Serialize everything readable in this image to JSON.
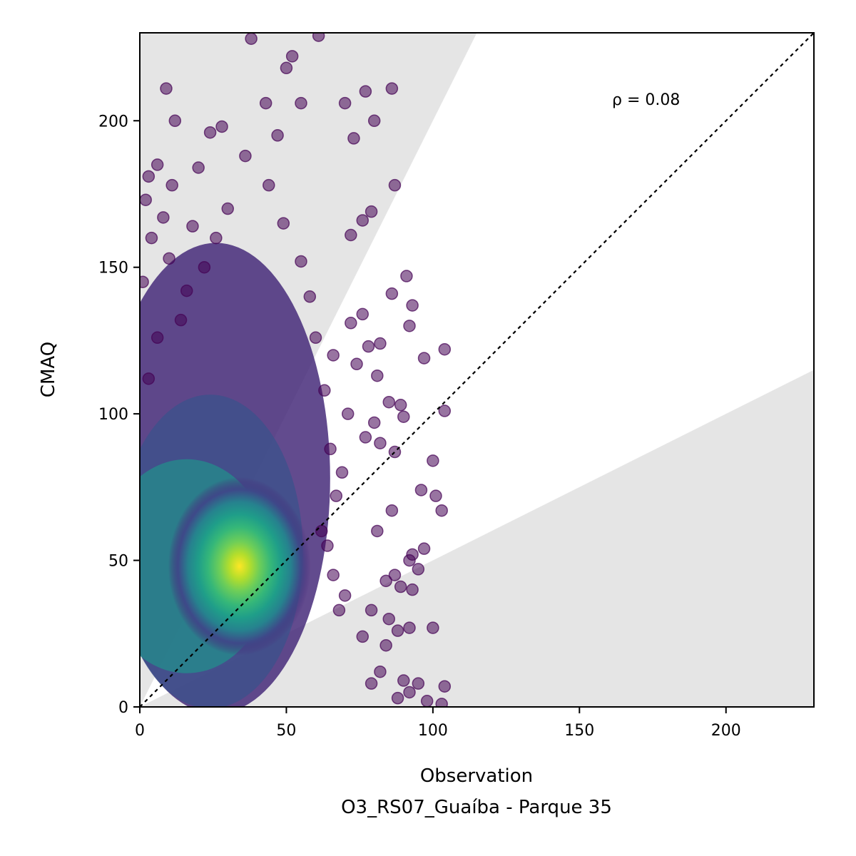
{
  "chart_data": {
    "type": "scatter",
    "title": "",
    "xlabel": "Observation",
    "xlabel_sub": "O3_RS07_Guaíba - Parque 35",
    "ylabel": "CMAQ",
    "xlim": [
      0,
      230
    ],
    "ylim": [
      0,
      230
    ],
    "xticks": [
      0,
      50,
      100,
      150,
      200
    ],
    "yticks": [
      0,
      50,
      100,
      150,
      200
    ],
    "grid": false,
    "annotation": "ρ = 0.08",
    "identity_line": true,
    "shaded_regions": "outside factor-of-2 band (y > 2x and y < x/2)",
    "colormap": "viridis (point density)",
    "density_center": {
      "x": 34,
      "y": 48
    },
    "points": [
      {
        "x": 38,
        "y": 228
      },
      {
        "x": 61,
        "y": 229
      },
      {
        "x": 52,
        "y": 222
      },
      {
        "x": 50,
        "y": 218
      },
      {
        "x": 9,
        "y": 211
      },
      {
        "x": 86,
        "y": 211
      },
      {
        "x": 77,
        "y": 210
      },
      {
        "x": 43,
        "y": 206
      },
      {
        "x": 70,
        "y": 206
      },
      {
        "x": 55,
        "y": 206
      },
      {
        "x": 12,
        "y": 200
      },
      {
        "x": 80,
        "y": 200
      },
      {
        "x": 28,
        "y": 198
      },
      {
        "x": 24,
        "y": 196
      },
      {
        "x": 47,
        "y": 195
      },
      {
        "x": 73,
        "y": 194
      },
      {
        "x": 3,
        "y": 181
      },
      {
        "x": 6,
        "y": 185
      },
      {
        "x": 11,
        "y": 178
      },
      {
        "x": 20,
        "y": 184
      },
      {
        "x": 87,
        "y": 178
      },
      {
        "x": 2,
        "y": 173
      },
      {
        "x": 8,
        "y": 167
      },
      {
        "x": 79,
        "y": 169
      },
      {
        "x": 76,
        "y": 166
      },
      {
        "x": 4,
        "y": 160
      },
      {
        "x": 72,
        "y": 161
      },
      {
        "x": 18,
        "y": 164
      },
      {
        "x": 10,
        "y": 153
      },
      {
        "x": 91,
        "y": 147
      },
      {
        "x": 86,
        "y": 141
      },
      {
        "x": 1,
        "y": 145
      },
      {
        "x": 93,
        "y": 137
      },
      {
        "x": 92,
        "y": 130
      },
      {
        "x": 76,
        "y": 134
      },
      {
        "x": 72,
        "y": 131
      },
      {
        "x": 104,
        "y": 122
      },
      {
        "x": 82,
        "y": 124
      },
      {
        "x": 78,
        "y": 123
      },
      {
        "x": 97,
        "y": 119
      },
      {
        "x": 74,
        "y": 117
      },
      {
        "x": 81,
        "y": 113
      },
      {
        "x": 85,
        "y": 104
      },
      {
        "x": 89,
        "y": 103
      },
      {
        "x": 104,
        "y": 101
      },
      {
        "x": 90,
        "y": 99
      },
      {
        "x": 80,
        "y": 97
      },
      {
        "x": 77,
        "y": 92
      },
      {
        "x": 82,
        "y": 90
      },
      {
        "x": 87,
        "y": 87
      },
      {
        "x": 100,
        "y": 84
      },
      {
        "x": 96,
        "y": 74
      },
      {
        "x": 101,
        "y": 72
      },
      {
        "x": 103,
        "y": 67
      },
      {
        "x": 86,
        "y": 67
      },
      {
        "x": 81,
        "y": 60
      },
      {
        "x": 93,
        "y": 52
      },
      {
        "x": 97,
        "y": 54
      },
      {
        "x": 92,
        "y": 50
      },
      {
        "x": 95,
        "y": 47
      },
      {
        "x": 87,
        "y": 45
      },
      {
        "x": 84,
        "y": 43
      },
      {
        "x": 93,
        "y": 40
      },
      {
        "x": 89,
        "y": 41
      },
      {
        "x": 79,
        "y": 33
      },
      {
        "x": 85,
        "y": 30
      },
      {
        "x": 92,
        "y": 27
      },
      {
        "x": 100,
        "y": 27
      },
      {
        "x": 88,
        "y": 26
      },
      {
        "x": 84,
        "y": 21
      },
      {
        "x": 76,
        "y": 24
      },
      {
        "x": 82,
        "y": 12
      },
      {
        "x": 79,
        "y": 8
      },
      {
        "x": 90,
        "y": 9
      },
      {
        "x": 95,
        "y": 8
      },
      {
        "x": 104,
        "y": 7
      },
      {
        "x": 92,
        "y": 5
      },
      {
        "x": 88,
        "y": 3
      },
      {
        "x": 98,
        "y": 2
      },
      {
        "x": 103,
        "y": 1
      },
      {
        "x": 70,
        "y": 38
      },
      {
        "x": 68,
        "y": 33
      },
      {
        "x": 66,
        "y": 45
      },
      {
        "x": 64,
        "y": 55
      },
      {
        "x": 62,
        "y": 60
      },
      {
        "x": 67,
        "y": 72
      },
      {
        "x": 69,
        "y": 80
      },
      {
        "x": 65,
        "y": 88
      },
      {
        "x": 71,
        "y": 100
      },
      {
        "x": 63,
        "y": 108
      },
      {
        "x": 66,
        "y": 120
      },
      {
        "x": 60,
        "y": 126
      },
      {
        "x": 58,
        "y": 140
      },
      {
        "x": 55,
        "y": 152
      },
      {
        "x": 49,
        "y": 165
      },
      {
        "x": 44,
        "y": 178
      },
      {
        "x": 36,
        "y": 188
      },
      {
        "x": 30,
        "y": 170
      },
      {
        "x": 26,
        "y": 160
      },
      {
        "x": 22,
        "y": 150
      },
      {
        "x": 16,
        "y": 142
      },
      {
        "x": 14,
        "y": 132
      },
      {
        "x": 6,
        "y": 126
      },
      {
        "x": 3,
        "y": 112
      }
    ]
  }
}
